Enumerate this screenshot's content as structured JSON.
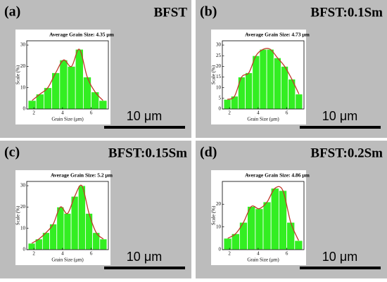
{
  "chart_data": [
    {
      "type": "histogram",
      "panel": "(a)",
      "sample": "BFST",
      "title": "Average Grain Size: 4.35 μm",
      "scale_bar": "10 μm",
      "xlabel": "Grain Size (μm)",
      "ylabel": "Scale (%)",
      "bins": [
        1.6,
        2.15,
        2.7,
        3.25,
        3.8,
        4.35,
        4.9,
        5.45,
        6.0,
        6.55,
        7.1
      ],
      "values": [
        4,
        7,
        10,
        17,
        23,
        20,
        28,
        15,
        8,
        4
      ],
      "xlim": [
        1.5,
        7.2
      ],
      "xticks": [
        2,
        4,
        6
      ],
      "ylim": [
        0,
        32
      ],
      "yticks": [
        0,
        10,
        20,
        30
      ],
      "color": "#33ee22",
      "line_color": "#c0392b"
    },
    {
      "type": "histogram",
      "panel": "(b)",
      "sample": "BFST:0.1Sm",
      "title": "Average Grain Size: 4.73 μm",
      "scale_bar": "10 μm",
      "xlabel": "Grain Size (μm)",
      "ylabel": "Scale (%)",
      "bins": [
        1.6,
        2.1,
        2.6,
        3.1,
        3.6,
        4.1,
        4.6,
        5.1,
        5.6,
        6.1,
        6.6,
        7.1
      ],
      "values": [
        4.5,
        6,
        15,
        17,
        25,
        28,
        28,
        24,
        20,
        14,
        7
      ],
      "xlim": [
        1.5,
        7.2
      ],
      "xticks": [
        2,
        4,
        6
      ],
      "ylim": [
        0,
        32
      ],
      "yticks": [
        0,
        5,
        10,
        15,
        20,
        25,
        30
      ],
      "color": "#33ee22",
      "line_color": "#c0392b"
    },
    {
      "type": "histogram",
      "panel": "(c)",
      "sample": "BFST:0.15Sm",
      "title": "Average Grain Size: 5.2 μm",
      "scale_bar": "10 μm",
      "xlabel": "Grain Size (μm)",
      "ylabel": "Scale (%)",
      "bins": [
        1.6,
        2.1,
        2.6,
        3.1,
        3.6,
        4.1,
        4.6,
        5.1,
        5.6,
        6.1,
        6.6,
        7.1
      ],
      "values": [
        3,
        5,
        8,
        12,
        20,
        17,
        25,
        30,
        17,
        8,
        5
      ],
      "xlim": [
        1.5,
        7.2
      ],
      "xticks": [
        2,
        4,
        6
      ],
      "ylim": [
        0,
        32
      ],
      "yticks": [
        0,
        10,
        20,
        30
      ],
      "color": "#33ee22",
      "line_color": "#c0392b"
    },
    {
      "type": "histogram",
      "panel": "(d)",
      "sample": "BFST:0.2Sm",
      "title": "Average Grain Size: 4.86 μm",
      "scale_bar": "10 μm",
      "xlabel": "Grain Size (μm)",
      "ylabel": "Scale (%)",
      "bins": [
        1.6,
        2.15,
        2.7,
        3.25,
        3.8,
        4.35,
        4.9,
        5.45,
        6.0,
        6.55,
        7.1
      ],
      "values": [
        5,
        7,
        12,
        19,
        18,
        21,
        27,
        26,
        12,
        4
      ],
      "xlim": [
        1.5,
        7.2
      ],
      "xticks": [
        2,
        4,
        6
      ],
      "ylim": [
        0,
        30
      ],
      "yticks": [
        0,
        10,
        20
      ],
      "color": "#33ee22",
      "line_color": "#c0392b"
    }
  ]
}
